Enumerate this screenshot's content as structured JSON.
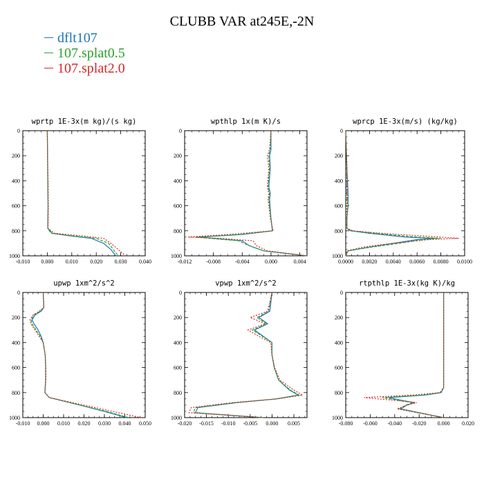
{
  "title": "CLUBB VAR at245E,-2N",
  "legend": [
    {
      "label": "dflt107",
      "color": "#1f77b4"
    },
    {
      "label": "107.splat0.5",
      "color": "#2ca02c"
    },
    {
      "label": "107.splat2.0",
      "color": "#d62728"
    }
  ],
  "chart_data": [
    {
      "type": "line",
      "title": "wprtp  1E-3x(m kg)/(s kg)",
      "xlim": [
        -0.01,
        0.04
      ],
      "xticks": [
        "-0.010",
        "0.000",
        "0.010",
        "0.020",
        "0.030",
        "0.040"
      ],
      "ylim": [
        1000,
        0
      ],
      "yticks": [
        "0",
        "200",
        "400",
        "600",
        "800",
        "1000"
      ],
      "series": [
        {
          "name": "dflt107",
          "y": [
            0,
            200,
            400,
            600,
            780,
            820,
            840,
            860,
            900,
            950,
            1000
          ],
          "x": [
            0.0,
            0.0001,
            0.0002,
            0.0003,
            0.0002,
            0.002,
            0.009,
            0.018,
            0.023,
            0.026,
            0.028
          ]
        },
        {
          "name": "107.splat0.5",
          "y": [
            0,
            200,
            400,
            600,
            780,
            820,
            840,
            860,
            900,
            950,
            1000
          ],
          "x": [
            0.0,
            0.0001,
            0.0002,
            0.0003,
            0.0002,
            0.0015,
            0.01,
            0.02,
            0.025,
            0.027,
            0.029
          ]
        },
        {
          "name": "107.splat2.0",
          "y": [
            0,
            200,
            400,
            600,
            780,
            820,
            840,
            860,
            900,
            950,
            1000
          ],
          "x": [
            0.0,
            0.0001,
            0.0003,
            0.0004,
            0.0003,
            0.003,
            0.014,
            0.023,
            0.026,
            0.029,
            0.032
          ]
        }
      ]
    },
    {
      "type": "line",
      "title": "wpthlp  1x(m K)/s",
      "xlim": [
        -0.012,
        0.005
      ],
      "xticks": [
        "-0.012",
        "-0.008",
        "-0.004",
        "0.000",
        "0.004"
      ],
      "ylim": [
        1000,
        0
      ],
      "yticks": [
        "0",
        "200",
        "400",
        "600",
        "800",
        "1000"
      ],
      "series": [
        {
          "name": "dflt107",
          "y": [
            0,
            150,
            200,
            300,
            450,
            500,
            550,
            700,
            800,
            830,
            850,
            860,
            880,
            920,
            960,
            1000
          ],
          "x": [
            0.0,
            0.0,
            -0.0002,
            -0.0001,
            -0.0003,
            -0.0001,
            -0.0002,
            0.0,
            0.0002,
            -0.004,
            -0.01,
            -0.008,
            -0.004,
            -0.003,
            -0.001,
            0.005
          ]
        },
        {
          "name": "107.splat0.5",
          "y": [
            0,
            150,
            200,
            300,
            450,
            500,
            550,
            700,
            800,
            830,
            850,
            860,
            880,
            920,
            960,
            1000
          ],
          "x": [
            0.0,
            -0.0001,
            -0.0003,
            -0.0002,
            -0.0004,
            -0.0002,
            -0.0003,
            0.0,
            0.0002,
            -0.0045,
            -0.0105,
            -0.0085,
            -0.0045,
            -0.003,
            -0.001,
            0.005
          ]
        },
        {
          "name": "107.splat2.0",
          "y": [
            0,
            150,
            200,
            300,
            450,
            500,
            550,
            700,
            800,
            830,
            850,
            860,
            880,
            920,
            960,
            1000
          ],
          "x": [
            0.0,
            -0.0002,
            -0.0005,
            -0.0003,
            -0.0005,
            -0.0003,
            -0.0004,
            -0.0001,
            0.0003,
            -0.006,
            -0.0115,
            -0.007,
            -0.0025,
            -0.002,
            -0.0005,
            0.005
          ]
        }
      ]
    },
    {
      "type": "line",
      "title": "wprcp  1E-3x(m/s) (kg/kg)",
      "xlim": [
        0.0,
        0.01
      ],
      "xticks": [
        "0.0000",
        "0.0020",
        "0.0040",
        "0.0060",
        "0.0080",
        "0.0100"
      ],
      "ylim": [
        1000,
        0
      ],
      "yticks": [
        "0",
        "200",
        "400",
        "600",
        "800",
        "1000"
      ],
      "series": [
        {
          "name": "dflt107",
          "y": [
            0,
            300,
            500,
            600,
            700,
            780,
            800,
            820,
            850,
            860,
            870,
            900,
            930,
            960,
            1000
          ],
          "x": [
            0.0,
            0.0001,
            0.0002,
            0.0002,
            0.0001,
            0.0001,
            0.0004,
            0.002,
            0.005,
            0.0075,
            0.006,
            0.004,
            0.002,
            0.0002,
            0.0
          ]
        },
        {
          "name": "107.splat0.5",
          "y": [
            0,
            300,
            500,
            600,
            700,
            780,
            800,
            820,
            850,
            860,
            870,
            900,
            930,
            960,
            1000
          ],
          "x": [
            0.0,
            0.0001,
            0.0001,
            0.0002,
            0.0001,
            0.0001,
            0.0005,
            0.0025,
            0.006,
            0.008,
            0.0065,
            0.0045,
            0.0022,
            0.0002,
            0.0
          ]
        },
        {
          "name": "107.splat2.0",
          "y": [
            0,
            300,
            500,
            600,
            700,
            780,
            800,
            820,
            850,
            860,
            870,
            900,
            930,
            960,
            1000
          ],
          "x": [
            0.0,
            0.0001,
            0.0001,
            0.0001,
            0.0001,
            0.0001,
            0.0006,
            0.003,
            0.008,
            0.0095,
            0.007,
            0.004,
            0.0015,
            0.0001,
            0.0
          ]
        }
      ]
    },
    {
      "type": "line",
      "title": "upwp  1xm^2/s^2",
      "xlim": [
        -0.01,
        0.05
      ],
      "xticks": [
        "-0.010",
        "0.000",
        "0.010",
        "0.020",
        "0.030",
        "0.040",
        "0.050"
      ],
      "ylim": [
        1000,
        0
      ],
      "yticks": [
        "0",
        "200",
        "400",
        "600",
        "800",
        "1000"
      ],
      "series": [
        {
          "name": "dflt107",
          "y": [
            0,
            120,
            150,
            180,
            220,
            250,
            300,
            350,
            400,
            500,
            600,
            700,
            800,
            840,
            900,
            950,
            1000
          ],
          "x": [
            0.0,
            0.0003,
            -0.001,
            -0.004,
            -0.0055,
            -0.0045,
            -0.0025,
            -0.001,
            0.0,
            0.001,
            0.0012,
            0.0012,
            0.0008,
            0.003,
            0.018,
            0.03,
            0.041
          ]
        },
        {
          "name": "107.splat0.5",
          "y": [
            0,
            120,
            150,
            180,
            220,
            250,
            300,
            350,
            400,
            500,
            600,
            700,
            800,
            840,
            900,
            950,
            1000
          ],
          "x": [
            0.0,
            0.0003,
            -0.0015,
            -0.0045,
            -0.006,
            -0.0055,
            -0.0035,
            -0.0015,
            0.0,
            0.001,
            0.0012,
            0.0012,
            0.0008,
            0.003,
            0.018,
            0.031,
            0.042
          ]
        },
        {
          "name": "107.splat2.0",
          "y": [
            0,
            120,
            150,
            180,
            220,
            250,
            300,
            350,
            400,
            500,
            600,
            700,
            800,
            840,
            900,
            950,
            1000
          ],
          "x": [
            0.0,
            0.0003,
            -0.002,
            -0.005,
            -0.0065,
            -0.006,
            -0.004,
            -0.002,
            0.0,
            0.001,
            0.0013,
            0.0013,
            0.0008,
            0.003,
            0.02,
            0.034,
            0.048
          ]
        }
      ]
    },
    {
      "type": "line",
      "title": "vpwp  1xm^2/s^2",
      "xlim": [
        -0.02,
        0.008
      ],
      "xticks": [
        "-0.020",
        "-0.015",
        "-0.010",
        "-0.005",
        "0.000",
        "0.005"
      ],
      "ylim": [
        1000,
        0
      ],
      "yticks": [
        "0",
        "200",
        "400",
        "600",
        "800",
        "1000"
      ],
      "series": [
        {
          "name": "dflt107",
          "y": [
            0,
            150,
            200,
            250,
            300,
            350,
            400,
            500,
            600,
            700,
            780,
            820,
            850,
            880,
            920,
            960,
            1000
          ],
          "x": [
            0.0,
            -0.0005,
            -0.003,
            -0.001,
            -0.004,
            -0.002,
            0.0,
            0.0,
            0.0005,
            0.0015,
            0.004,
            0.006,
            0.001,
            -0.008,
            -0.017,
            -0.0175,
            -0.002
          ]
        },
        {
          "name": "107.splat0.5",
          "y": [
            0,
            150,
            200,
            250,
            300,
            350,
            400,
            500,
            600,
            700,
            780,
            820,
            850,
            880,
            920,
            960,
            1000
          ],
          "x": [
            0.0,
            -0.0008,
            -0.0035,
            -0.0012,
            -0.0045,
            -0.0022,
            0.0,
            0.0,
            0.0005,
            0.0015,
            0.0042,
            0.0062,
            0.001,
            -0.0085,
            -0.0175,
            -0.018,
            -0.002
          ]
        },
        {
          "name": "107.splat2.0",
          "y": [
            0,
            150,
            200,
            250,
            300,
            350,
            400,
            500,
            600,
            700,
            780,
            820,
            850,
            880,
            920,
            960,
            1000
          ],
          "x": [
            0.0,
            -0.001,
            -0.005,
            -0.0015,
            -0.0055,
            -0.003,
            -0.0003,
            0.0,
            0.0006,
            0.0018,
            0.005,
            0.007,
            0.0012,
            -0.009,
            -0.0185,
            -0.019,
            -0.002
          ]
        }
      ]
    },
    {
      "type": "line",
      "title": "rtpthlp  1E-3x(kg K)/kg",
      "xlim": [
        -0.08,
        0.02
      ],
      "xticks": [
        "-0.080",
        "-0.060",
        "-0.040",
        "-0.020",
        "0.000",
        "0.020"
      ],
      "ylim": [
        1000,
        0
      ],
      "yticks": [
        "0",
        "200",
        "400",
        "600",
        "800",
        "1000"
      ],
      "series": [
        {
          "name": "dflt107",
          "y": [
            0,
            200,
            400,
            600,
            760,
            800,
            820,
            840,
            860,
            880,
            900,
            930,
            960,
            1000
          ],
          "x": [
            0.0,
            0.0,
            0.0,
            0.0,
            0.0,
            -0.002,
            -0.015,
            -0.045,
            -0.035,
            -0.024,
            -0.03,
            -0.035,
            -0.02,
            0.0
          ]
        },
        {
          "name": "107.splat0.5",
          "y": [
            0,
            200,
            400,
            600,
            760,
            800,
            820,
            840,
            860,
            880,
            900,
            930,
            960,
            1000
          ],
          "x": [
            0.0,
            0.0,
            0.0,
            0.0,
            0.0,
            -0.0025,
            -0.017,
            -0.05,
            -0.038,
            -0.025,
            -0.031,
            -0.036,
            -0.021,
            0.0
          ]
        },
        {
          "name": "107.splat2.0",
          "y": [
            0,
            200,
            400,
            600,
            760,
            800,
            820,
            840,
            860,
            880,
            900,
            930,
            960,
            1000
          ],
          "x": [
            0.0,
            0.0,
            0.0,
            0.0,
            0.0,
            -0.003,
            -0.025,
            -0.065,
            -0.042,
            -0.022,
            -0.03,
            -0.038,
            -0.022,
            0.0
          ]
        }
      ]
    }
  ]
}
